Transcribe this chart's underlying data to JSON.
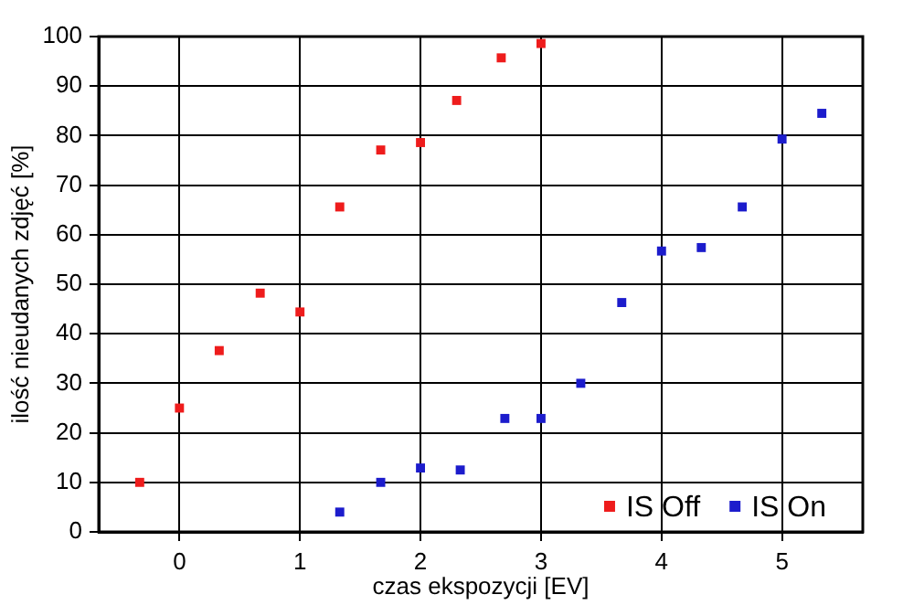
{
  "chart_data": {
    "type": "scatter",
    "xlabel": "czas ekspozycji [EV]",
    "ylabel": "ilość nieudanych zdjęć [%]",
    "xlim": [
      -0.67,
      5.67
    ],
    "xticks": [
      0,
      1,
      2,
      3,
      4,
      5
    ],
    "ylim": [
      0,
      100
    ],
    "yticks": [
      0,
      10,
      20,
      30,
      40,
      50,
      60,
      70,
      80,
      90,
      100
    ],
    "grid": true,
    "legend": "bottom right",
    "marker": "square",
    "series": [
      {
        "name": "IS Off",
        "color": "#ee1c1c",
        "x": [
          -0.33,
          0,
          0.33,
          0.67,
          1,
          1.33,
          1.67,
          2,
          2.3,
          2.67,
          3
        ],
        "values": [
          10,
          25,
          36.6,
          48.2,
          44.4,
          65.6,
          77.1,
          78.6,
          87.1,
          95.7,
          98.6
        ]
      },
      {
        "name": "IS On",
        "color": "#1c1ccc",
        "x": [
          1.33,
          1.67,
          2,
          2.33,
          2.7,
          3,
          3.33,
          3.67,
          4,
          4.33,
          4.67,
          5,
          5.33
        ],
        "values": [
          4,
          10,
          12.9,
          12.5,
          22.9,
          22.9,
          30,
          46.3,
          56.7,
          57.4,
          65.6,
          79.3,
          84.5
        ]
      }
    ]
  }
}
